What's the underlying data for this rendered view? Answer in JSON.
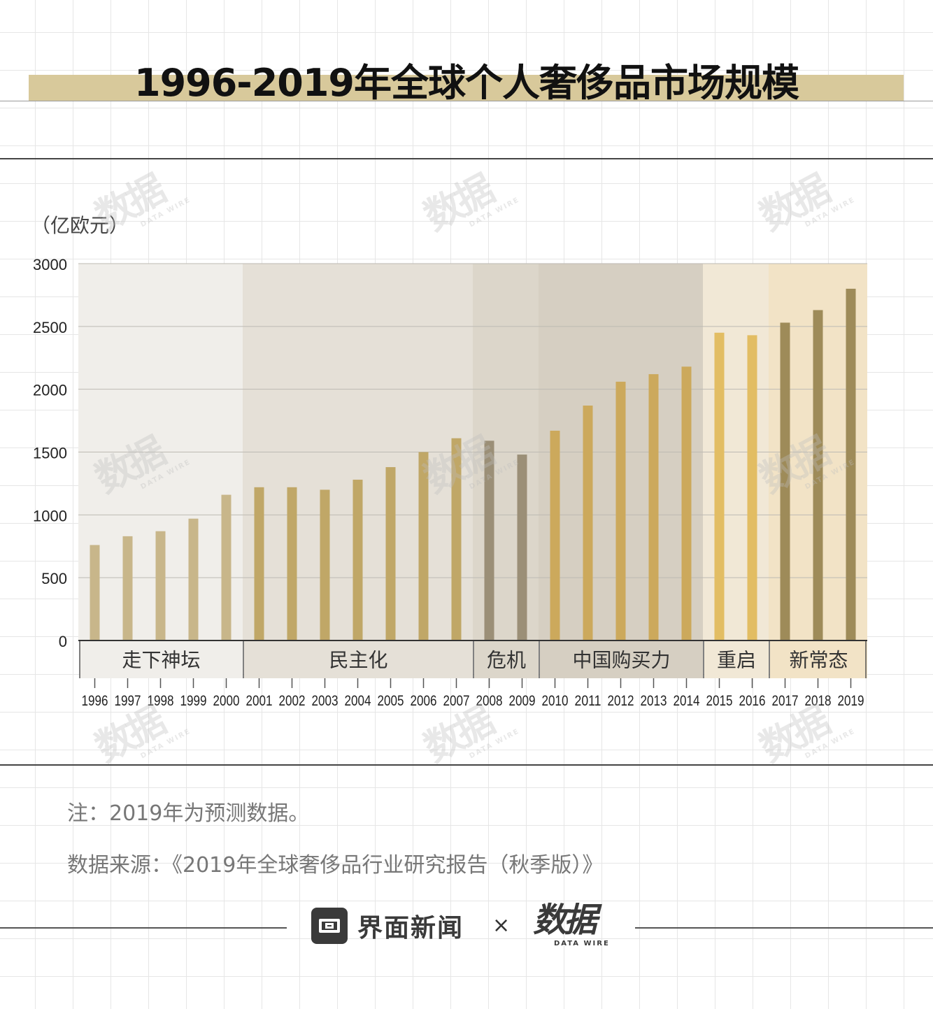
{
  "header": {
    "title": "1996-2019年全球个人奢侈品市场规模"
  },
  "chart_data": {
    "type": "bar",
    "unit_label": "（亿欧元）",
    "ylim": [
      0,
      3000
    ],
    "yticks": [
      "0",
      "500",
      "1000",
      "1500",
      "2000",
      "2500",
      "3000"
    ],
    "ytick_values": [
      0,
      500,
      1000,
      1500,
      2000,
      2500,
      3000
    ],
    "categories": [
      "1996",
      "1997",
      "1998",
      "1999",
      "2000",
      "2001",
      "2002",
      "2003",
      "2004",
      "2005",
      "2006",
      "2007",
      "2008",
      "2009",
      "2010",
      "2011",
      "2012",
      "2013",
      "2014",
      "2015",
      "2016",
      "2017",
      "2018",
      "2019"
    ],
    "values": [
      760,
      830,
      870,
      970,
      1160,
      1220,
      1220,
      1200,
      1280,
      1380,
      1500,
      1610,
      1590,
      1480,
      1670,
      1870,
      2060,
      2120,
      2180,
      2450,
      2430,
      2530,
      2630,
      2800
    ],
    "grid": true,
    "phases": [
      {
        "name": "走下神坛",
        "start": 0,
        "end": 4,
        "bg": "#f0eeea",
        "label_bg": "#f0eeea",
        "bar": "#c8b68a"
      },
      {
        "name": "民主化",
        "start": 5,
        "end": 11,
        "bg": "#e5e0d7",
        "label_bg": "#e5e0d7",
        "bar": "#c0a767"
      },
      {
        "name": "危机",
        "start": 12,
        "end": 13,
        "bg": "#dcd6ca",
        "label_bg": "#dcd6ca",
        "bar": "#9b8f77"
      },
      {
        "name": "中国购买力",
        "start": 14,
        "end": 18,
        "bg": "#d6cfc2",
        "label_bg": "#d6cfc2",
        "bar": "#cca95c"
      },
      {
        "name": "重启",
        "start": 19,
        "end": 20,
        "bg": "#f1e8d6",
        "label_bg": "#f1e8d6",
        "bar": "#e2bd63"
      },
      {
        "name": "新常态",
        "start": 21,
        "end": 23,
        "bg": "#f2e3c6",
        "label_bg": "#f2e3c6",
        "bar": "#9e8b59"
      }
    ]
  },
  "notes": {
    "note": "注：2019年为预测数据。",
    "source": "数据来源：《2019年全球奢侈品行业研究报告（秋季版）》"
  },
  "footer": {
    "brand_name": "界面新闻",
    "times": "×",
    "partner_logo": "数据",
    "partner_sub": "DATA WIRE"
  },
  "watermark": {
    "main": "数据",
    "sub": "DATA WIRE"
  }
}
